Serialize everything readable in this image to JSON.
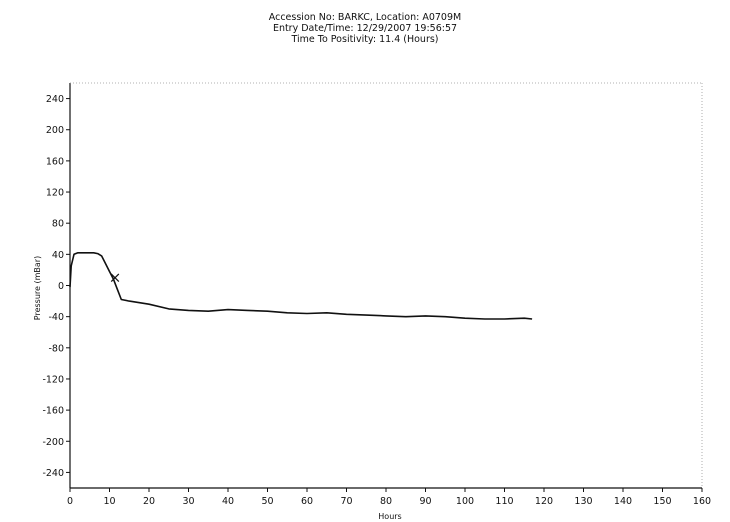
{
  "header": {
    "line1": "Accession No: BARKC,  Location: A0709M",
    "line2": "Entry Date/Time: 12/29/2007 19:56:57",
    "line3": "Time To Positivity: 11.4 (Hours)"
  },
  "chart_data": {
    "type": "line",
    "title": "",
    "xlabel": "Hours",
    "ylabel": "Pressure (mBar)",
    "xlim": [
      0,
      160
    ],
    "ylim": [
      -260,
      260
    ],
    "x_ticks": [
      0,
      10,
      20,
      30,
      40,
      50,
      60,
      70,
      80,
      90,
      100,
      110,
      120,
      130,
      140,
      150,
      160
    ],
    "y_ticks": [
      240,
      200,
      160,
      120,
      80,
      40,
      0,
      -40,
      -80,
      -120,
      -160,
      -200,
      -240
    ],
    "grid": false,
    "series": [
      {
        "color": "#111111",
        "x": [
          0,
          0.3,
          1,
          2,
          4,
          6,
          7,
          8,
          9,
          10,
          11,
          12,
          13,
          15,
          20,
          25,
          30,
          35,
          40,
          45,
          50,
          55,
          60,
          65,
          70,
          75,
          80,
          85,
          90,
          95,
          100,
          105,
          110,
          115,
          117
        ],
        "y": [
          -2,
          25,
          40,
          42,
          42,
          42,
          41,
          38,
          28,
          18,
          8,
          -5,
          -18,
          -20,
          -24,
          -30,
          -32,
          -33,
          -31,
          -32,
          -33,
          -35,
          -36,
          -35,
          -37,
          -38,
          -39,
          -40,
          -39,
          -40,
          -42,
          -43,
          -43,
          -42,
          -43
        ]
      }
    ],
    "markers": [
      {
        "label": "×",
        "x": 11.4,
        "y": 10
      }
    ]
  }
}
